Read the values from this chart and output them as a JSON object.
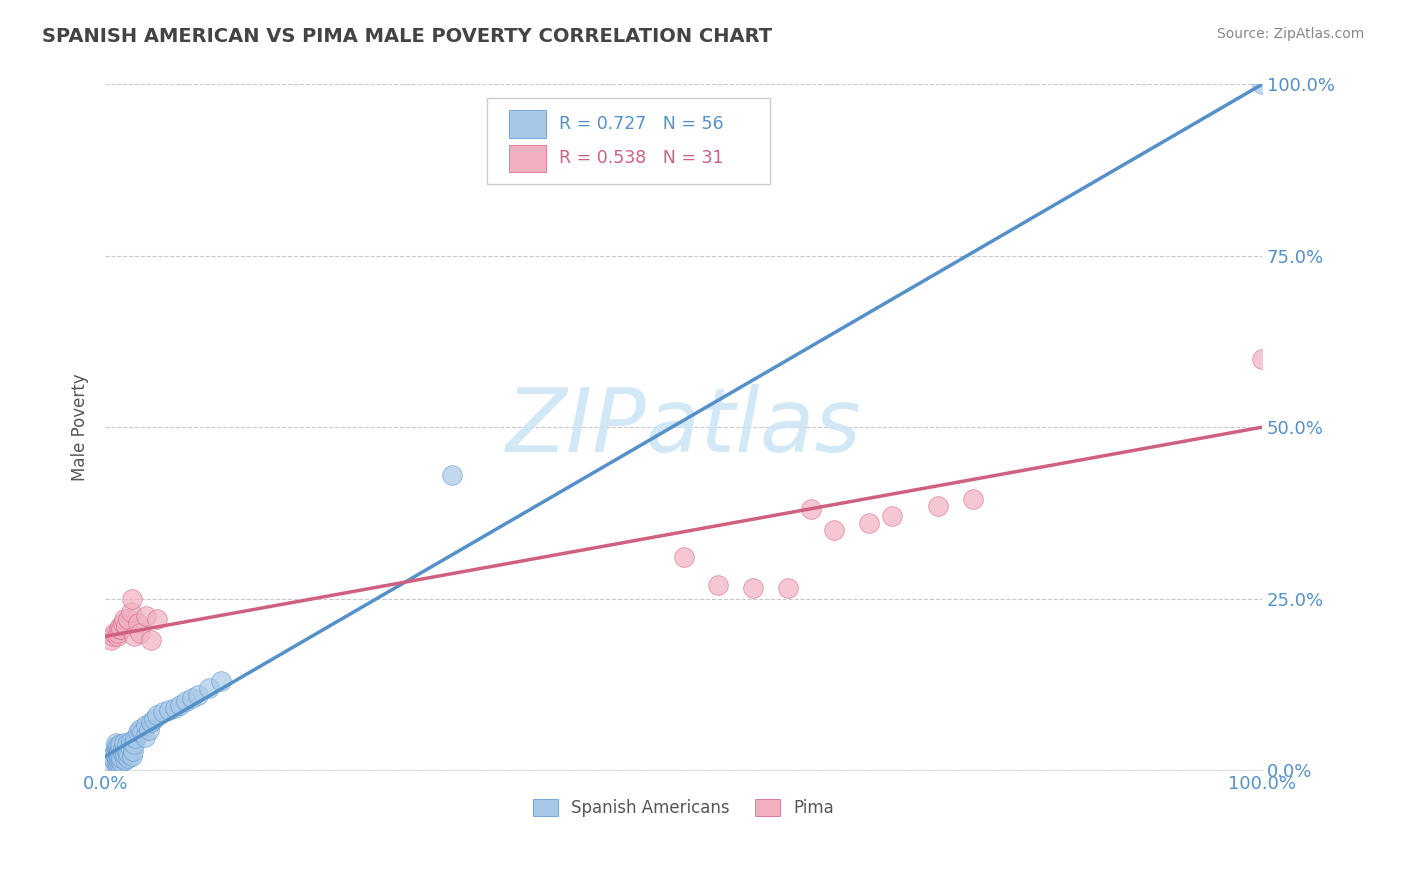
{
  "title": "SPANISH AMERICAN VS PIMA MALE POVERTY CORRELATION CHART",
  "source": "Source: ZipAtlas.com",
  "ylabel": "Male Poverty",
  "xlim": [
    0,
    1.0
  ],
  "ylim": [
    0,
    1.0
  ],
  "ytick_positions": [
    0.0,
    0.25,
    0.5,
    0.75,
    1.0
  ],
  "grid_color": "#c8c8c8",
  "background_color": "#ffffff",
  "watermark_text": "ZIPatlas",
  "watermark_color": "#cce4f5",
  "blue_R": 0.727,
  "blue_N": 56,
  "pink_R": 0.538,
  "pink_N": 31,
  "blue_color": "#a8c8e8",
  "blue_edge_color": "#5590c8",
  "pink_color": "#f0b0c0",
  "pink_edge_color": "#d06080",
  "blue_line_color": "#5590c8",
  "pink_line_color": "#d06080",
  "blue_scatter_x": [
    0.005,
    0.007,
    0.008,
    0.008,
    0.009,
    0.009,
    0.009,
    0.01,
    0.01,
    0.01,
    0.011,
    0.011,
    0.011,
    0.012,
    0.012,
    0.012,
    0.012,
    0.013,
    0.013,
    0.014,
    0.014,
    0.015,
    0.015,
    0.016,
    0.017,
    0.017,
    0.018,
    0.019,
    0.02,
    0.02,
    0.021,
    0.022,
    0.023,
    0.024,
    0.025,
    0.026,
    0.028,
    0.03,
    0.032,
    0.034,
    0.035,
    0.038,
    0.04,
    0.042,
    0.045,
    0.05,
    0.055,
    0.06,
    0.065,
    0.07,
    0.075,
    0.08,
    0.09,
    0.1,
    0.3,
    1.0
  ],
  "blue_scatter_y": [
    0.01,
    0.02,
    0.015,
    0.025,
    0.03,
    0.035,
    0.04,
    0.008,
    0.012,
    0.018,
    0.022,
    0.028,
    0.035,
    0.01,
    0.015,
    0.02,
    0.028,
    0.033,
    0.038,
    0.012,
    0.018,
    0.025,
    0.032,
    0.04,
    0.015,
    0.022,
    0.03,
    0.038,
    0.018,
    0.025,
    0.033,
    0.042,
    0.02,
    0.028,
    0.038,
    0.046,
    0.055,
    0.06,
    0.055,
    0.048,
    0.065,
    0.058,
    0.07,
    0.075,
    0.08,
    0.085,
    0.088,
    0.09,
    0.095,
    0.1,
    0.105,
    0.11,
    0.12,
    0.13,
    0.43,
    1.0
  ],
  "pink_scatter_x": [
    0.005,
    0.007,
    0.008,
    0.01,
    0.011,
    0.012,
    0.013,
    0.014,
    0.015,
    0.016,
    0.018,
    0.02,
    0.022,
    0.023,
    0.025,
    0.028,
    0.03,
    0.035,
    0.04,
    0.045,
    0.5,
    0.53,
    0.56,
    0.59,
    0.61,
    0.63,
    0.66,
    0.68,
    0.72,
    0.75,
    1.0
  ],
  "pink_scatter_y": [
    0.19,
    0.195,
    0.2,
    0.195,
    0.2,
    0.205,
    0.21,
    0.205,
    0.215,
    0.22,
    0.21,
    0.22,
    0.23,
    0.25,
    0.195,
    0.215,
    0.2,
    0.225,
    0.19,
    0.22,
    0.31,
    0.27,
    0.265,
    0.265,
    0.38,
    0.35,
    0.36,
    0.37,
    0.385,
    0.395,
    0.6
  ],
  "blue_line_x": [
    0.0,
    1.0
  ],
  "blue_line_y": [
    0.02,
    1.0
  ],
  "pink_line_x": [
    0.0,
    1.0
  ],
  "pink_line_y": [
    0.195,
    0.5
  ],
  "legend_R_color": "#5590c8",
  "legend_N_color": "#555555",
  "title_color": "#444444",
  "source_color": "#888888",
  "axis_label_color": "#555555",
  "right_tick_color": "#5590c8"
}
